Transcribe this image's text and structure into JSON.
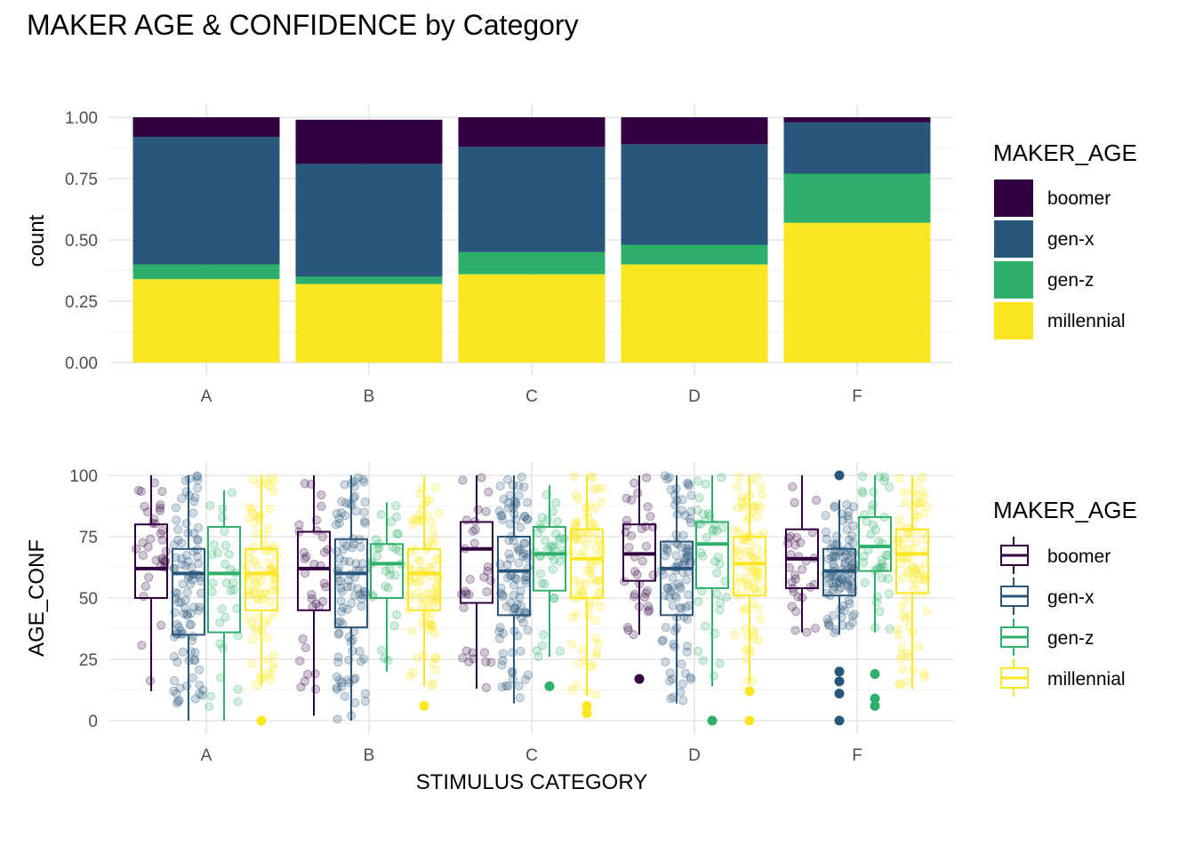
{
  "title": "MAKER AGE & CONFIDENCE by Category",
  "colors": {
    "boomer": "#330042",
    "gen-x": "#28577b",
    "gen-z": "#2fb06a",
    "millennial": "#fce621",
    "grid_major": "#e5e5e5",
    "grid_minor": "#f2f2f2"
  },
  "chart_data": [
    {
      "type": "bar",
      "stacked": "fill",
      "categories": [
        "A",
        "B",
        "C",
        "D",
        "F"
      ],
      "ylabel": "count",
      "xlabel": "",
      "ylim": [
        0,
        1
      ],
      "yticks": [
        "0.00",
        "0.25",
        "0.50",
        "0.75",
        "1.00"
      ],
      "legend_title": "MAKER_AGE",
      "legend_position": "right",
      "grid": true,
      "series": [
        {
          "name": "boomer",
          "values": [
            0.08,
            0.18,
            0.12,
            0.11,
            0.02
          ]
        },
        {
          "name": "gen-x",
          "values": [
            0.52,
            0.46,
            0.43,
            0.41,
            0.21
          ]
        },
        {
          "name": "gen-z",
          "values": [
            0.06,
            0.03,
            0.09,
            0.08,
            0.2
          ]
        },
        {
          "name": "millennial",
          "values": [
            0.34,
            0.32,
            0.36,
            0.4,
            0.57
          ]
        }
      ]
    },
    {
      "type": "box",
      "categories": [
        "A",
        "B",
        "C",
        "D",
        "F"
      ],
      "xlabel": "STIMULUS CATEGORY",
      "ylabel": "AGE_CONF",
      "ylim": [
        0,
        100
      ],
      "yticks": [
        "0",
        "25",
        "50",
        "75",
        "100"
      ],
      "legend_title": "MAKER_AGE",
      "legend_position": "right",
      "grid": true,
      "jittered_points": true,
      "series": [
        {
          "name": "boomer",
          "boxes": [
            {
              "min": 12,
              "q1": 50,
              "median": 62,
              "q3": 80,
              "max": 100,
              "outliers": []
            },
            {
              "min": 2,
              "q1": 45,
              "median": 62,
              "q3": 77,
              "max": 100,
              "outliers": []
            },
            {
              "min": 13,
              "q1": 48,
              "median": 70,
              "q3": 81,
              "max": 100,
              "outliers": []
            },
            {
              "min": 35,
              "q1": 57,
              "median": 68,
              "q3": 80,
              "max": 100,
              "outliers": [
                17
              ]
            },
            {
              "min": 36,
              "q1": 54,
              "median": 66,
              "q3": 78,
              "max": 100,
              "outliers": []
            }
          ]
        },
        {
          "name": "gen-x",
          "boxes": [
            {
              "min": 0,
              "q1": 35,
              "median": 60,
              "q3": 70,
              "max": 100,
              "outliers": []
            },
            {
              "min": 0,
              "q1": 38,
              "median": 60,
              "q3": 74,
              "max": 100,
              "outliers": []
            },
            {
              "min": 7,
              "q1": 43,
              "median": 61,
              "q3": 75,
              "max": 100,
              "outliers": []
            },
            {
              "min": 7,
              "q1": 43,
              "median": 62,
              "q3": 73,
              "max": 100,
              "outliers": []
            },
            {
              "min": 35,
              "q1": 51,
              "median": 61,
              "q3": 70,
              "max": 90,
              "outliers": [
                100,
                20,
                16,
                11,
                0
              ]
            }
          ]
        },
        {
          "name": "gen-z",
          "boxes": [
            {
              "min": 0,
              "q1": 36,
              "median": 60,
              "q3": 79,
              "max": 94,
              "outliers": []
            },
            {
              "min": 20,
              "q1": 50,
              "median": 64,
              "q3": 72,
              "max": 89,
              "outliers": []
            },
            {
              "min": 26,
              "q1": 53,
              "median": 68,
              "q3": 79,
              "max": 96,
              "outliers": [
                14
              ]
            },
            {
              "min": 14,
              "q1": 54,
              "median": 72,
              "q3": 81,
              "max": 100,
              "outliers": [
                0
              ]
            },
            {
              "min": 36,
              "q1": 61,
              "median": 71,
              "q3": 83,
              "max": 100,
              "outliers": [
                19,
                9,
                6
              ]
            }
          ]
        },
        {
          "name": "millennial",
          "boxes": [
            {
              "min": 14,
              "q1": 45,
              "median": 60,
              "q3": 70,
              "max": 100,
              "outliers": [
                0
              ]
            },
            {
              "min": 14,
              "q1": 45,
              "median": 60,
              "q3": 70,
              "max": 100,
              "outliers": [
                6
              ]
            },
            {
              "min": 10,
              "q1": 50,
              "median": 66,
              "q3": 78,
              "max": 100,
              "outliers": [
                6,
                3
              ]
            },
            {
              "min": 16,
              "q1": 51,
              "median": 64,
              "q3": 75,
              "max": 100,
              "outliers": [
                12,
                0
              ]
            },
            {
              "min": 13,
              "q1": 52,
              "median": 68,
              "q3": 78,
              "max": 100,
              "outliers": []
            }
          ]
        }
      ]
    }
  ]
}
